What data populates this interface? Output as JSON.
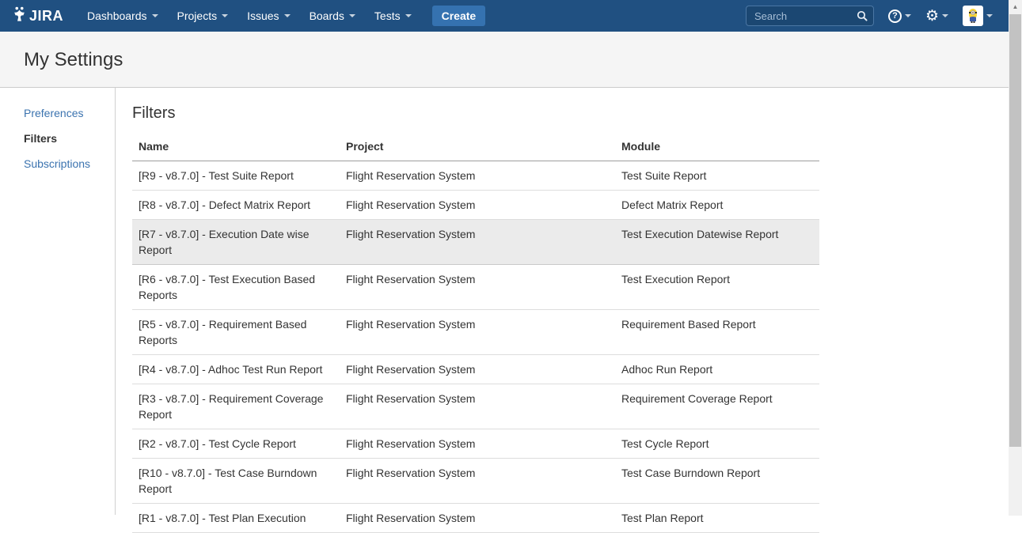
{
  "nav": {
    "brand": "JIRA",
    "items": [
      {
        "label": "Dashboards"
      },
      {
        "label": "Projects"
      },
      {
        "label": "Issues"
      },
      {
        "label": "Boards"
      },
      {
        "label": "Tests"
      }
    ],
    "create_label": "Create",
    "search_placeholder": "Search",
    "icons": {
      "logo": "jira-person-mark",
      "search": "magnifier",
      "help": "question-mark-circle",
      "settings": "gear",
      "user": "minion-avatar"
    }
  },
  "page": {
    "title": "My Settings"
  },
  "sidebar": {
    "items": [
      {
        "label": "Preferences",
        "active": false
      },
      {
        "label": "Filters",
        "active": true
      },
      {
        "label": "Subscriptions",
        "active": false
      }
    ]
  },
  "main": {
    "heading": "Filters",
    "table": {
      "columns": [
        "Name",
        "Project",
        "Module"
      ],
      "rows": [
        {
          "name": "[R9 - v8.7.0] - Test Suite Report",
          "project": "Flight Reservation System",
          "module": "Test Suite Report",
          "highlighted": false
        },
        {
          "name": "[R8 - v8.7.0] - Defect Matrix Report",
          "project": "Flight Reservation System",
          "module": "Defect Matrix Report",
          "highlighted": false
        },
        {
          "name": "[R7 - v8.7.0] - Execution Date wise Report",
          "project": "Flight Reservation System",
          "module": "Test Execution Datewise Report",
          "highlighted": true
        },
        {
          "name": "[R6 - v8.7.0] - Test Execution Based Reports",
          "project": "Flight Reservation System",
          "module": "Test Execution Report",
          "highlighted": false
        },
        {
          "name": "[R5 - v8.7.0] - Requirement Based Reports",
          "project": "Flight Reservation System",
          "module": "Requirement Based Report",
          "highlighted": false
        },
        {
          "name": "[R4 - v8.7.0] - Adhoc Test Run Report",
          "project": "Flight Reservation System",
          "module": "Adhoc Run Report",
          "highlighted": false
        },
        {
          "name": "[R3 - v8.7.0] - Requirement Coverage Report",
          "project": "Flight Reservation System",
          "module": "Requirement Coverage Report",
          "highlighted": false
        },
        {
          "name": "[R2 - v8.7.0] - Test Cycle Report",
          "project": "Flight Reservation System",
          "module": "Test Cycle Report",
          "highlighted": false
        },
        {
          "name": "[R10 - v8.7.0] - Test Case Burndown Report",
          "project": "Flight Reservation System",
          "module": "Test Case Burndown Report",
          "highlighted": false
        },
        {
          "name": "[R1 - v8.7.0] - Test Plan Execution",
          "project": "Flight Reservation System",
          "module": "Test Plan Report",
          "highlighted": false
        }
      ]
    }
  },
  "colors": {
    "navbar": "#205081",
    "create_button": "#3572b0",
    "link": "#3b73af",
    "row_highlight": "#ebebeb"
  }
}
